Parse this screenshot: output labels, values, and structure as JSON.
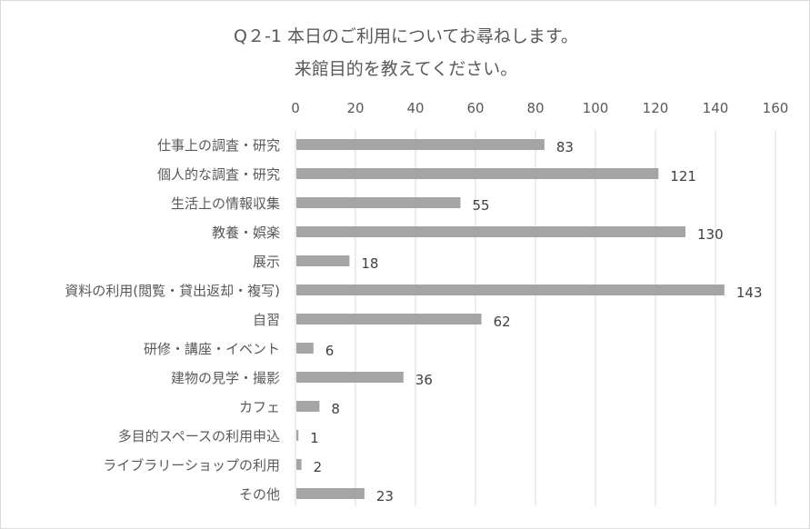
{
  "chart_data": {
    "type": "bar",
    "orientation": "horizontal",
    "title": [
      "Q２-1 本日のご利用についてお尋ねします。",
      "来館目的を教えてください。"
    ],
    "categories": [
      "仕事上の調査・研究",
      "個人的な調査・研究",
      "生活上の情報収集",
      "教養・娯楽",
      "展示",
      "資料の利用(閲覧・貸出返却・複写)",
      "自習",
      "研修・講座・イベント",
      "建物の見学・撮影",
      "カフェ",
      "多目的スペースの利用申込",
      "ライブラリーショップの利用",
      "その他"
    ],
    "values": [
      83,
      121,
      55,
      130,
      18,
      143,
      62,
      6,
      36,
      8,
      1,
      2,
      23
    ],
    "xlim": [
      0,
      160
    ],
    "xticks": [
      0,
      20,
      40,
      60,
      80,
      100,
      120,
      140,
      160
    ],
    "xaxis_position": "top",
    "grid": true,
    "data_labels": true,
    "legend": "none",
    "bar_color": "#a5a5a5"
  }
}
